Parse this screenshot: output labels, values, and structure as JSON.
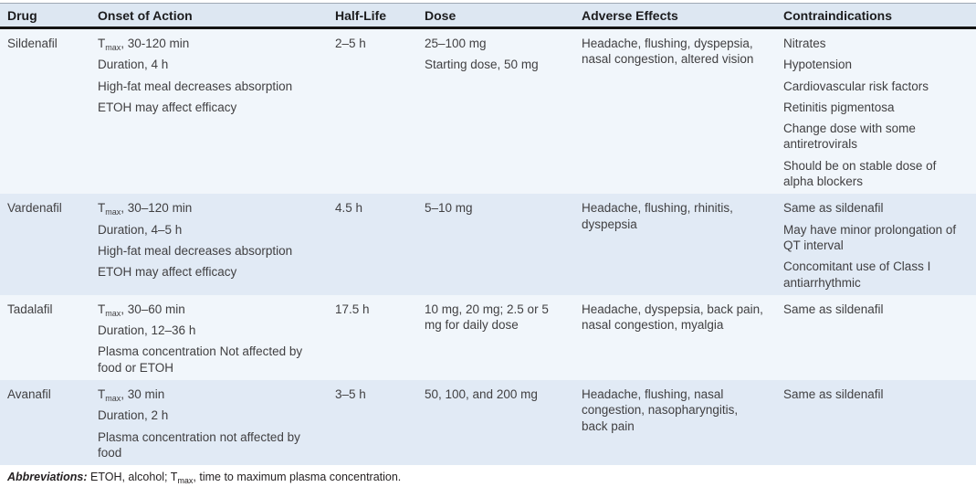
{
  "colors": {
    "header_bg": "#dde7f2",
    "header_text": "#1c1c1e",
    "row_light": "#f1f6fb",
    "row_dark": "#e1eaf5",
    "text": "#414042"
  },
  "table": {
    "columns": [
      "Drug",
      "Onset of Action",
      "Half-Life",
      "Dose",
      "Adverse Effects",
      "Contraindications"
    ],
    "rows": [
      {
        "drug": "Sildenafil",
        "onset": [
          "T~max~, 30-120 min",
          "Duration, 4 h",
          "High-fat meal decreases absorption",
          "ETOH may affect efficacy"
        ],
        "half_life": "2–5 h",
        "dose": [
          "25–100 mg",
          "Starting dose, 50 mg"
        ],
        "adverse_effects": "Headache, flushing, dyspepsia, nasal congestion, altered vision",
        "contraindications": [
          "Nitrates",
          "Hypotension",
          "Cardiovascular risk factors",
          "Retinitis pigmentosa",
          "Change dose with some antiretrovirals",
          "Should be on stable dose of alpha blockers"
        ]
      },
      {
        "drug": "Vardenafil",
        "onset": [
          "T~max~, 30–120 min",
          "Duration, 4–5 h",
          "High-fat meal decreases absorption",
          "ETOH may affect efficacy"
        ],
        "half_life": "4.5 h",
        "dose": [
          "5–10 mg"
        ],
        "adverse_effects": "Headache, flushing, rhinitis, dyspepsia",
        "contraindications": [
          "Same as sildenafil",
          "May have minor prolongation of QT interval",
          "Concomitant use of Class I antiarrhythmic"
        ]
      },
      {
        "drug": "Tadalafil",
        "onset": [
          "T~max~, 30–60 min",
          "Duration, 12–36 h",
          "Plasma concentration Not affected by food or ETOH"
        ],
        "half_life": "17.5 h",
        "dose": [
          "10 mg, 20 mg; 2.5 or 5 mg for daily dose"
        ],
        "adverse_effects": "Headache, dyspepsia, back pain, nasal congestion, myalgia",
        "contraindications": [
          "Same as sildenafil"
        ]
      },
      {
        "drug": "Avanafil",
        "onset": [
          "T~max~, 30 min",
          "Duration, 2 h",
          "Plasma concentration not affected by food"
        ],
        "half_life": "3–5 h",
        "dose": [
          "50, 100, and 200 mg"
        ],
        "adverse_effects": "Headache, flushing, nasal congestion, nasopharyngitis, back pain",
        "contraindications": [
          "Same as sildenafil"
        ]
      }
    ]
  },
  "footer": {
    "label": "Abbreviations:",
    "text": " ETOH, alcohol; T~max~, time to maximum plasma concentration."
  }
}
